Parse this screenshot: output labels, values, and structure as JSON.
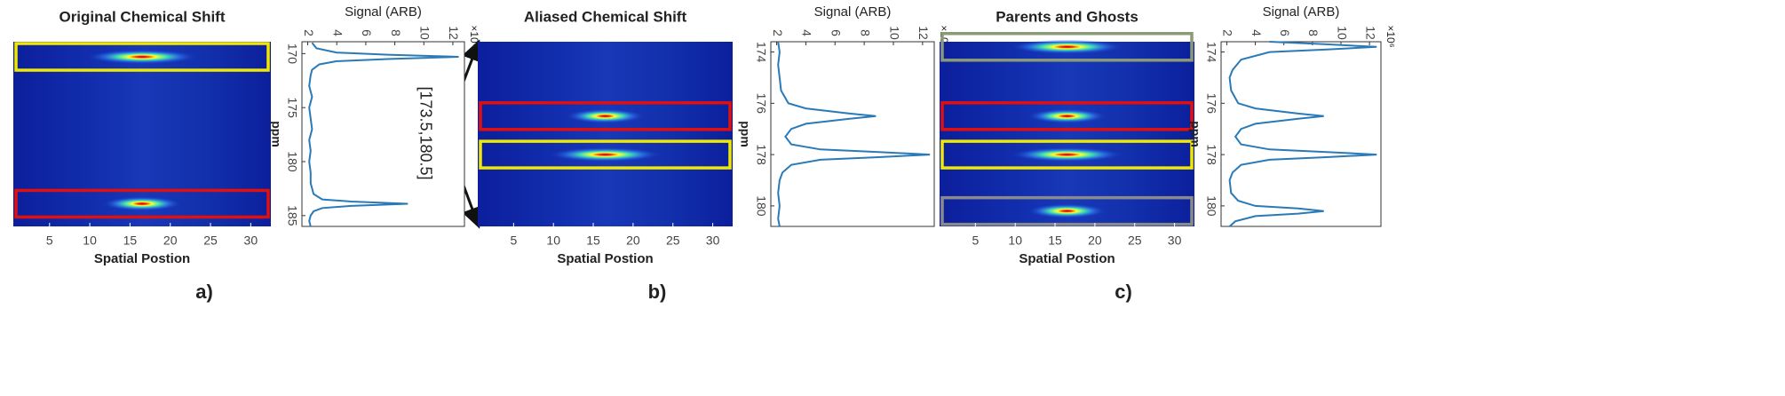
{
  "chart_data": [
    {
      "type": "heatmap",
      "title": "Original Chemical Shift",
      "xlabel": "Spatial Postion",
      "panel_label": "a)",
      "xlim": [
        0.5,
        32.5
      ],
      "xticks": [
        5,
        10,
        15,
        20,
        25,
        30
      ],
      "ylim": [
        168.9,
        186
      ],
      "spots": [
        {
          "ppm": 170.3,
          "x": 16.5,
          "intensity": 12.4
        },
        {
          "ppm": 183.9,
          "x": 16.5,
          "intensity": 8.9
        }
      ],
      "boxes": [
        {
          "center": 170.3,
          "color": "#f0e800"
        },
        {
          "center": 183.9,
          "color": "#e01010"
        }
      ]
    },
    {
      "type": "line",
      "ylabel": "Signal (ARB)",
      "xlabel": "ppm",
      "y_exponent_label": "×10⁶",
      "color": "#2a7ab8",
      "xlim": [
        168.9,
        186
      ],
      "xticks": [
        170,
        175,
        180,
        185
      ],
      "ylim": [
        1.6,
        12.8
      ],
      "yticks": [
        2,
        4,
        6,
        8,
        10,
        12
      ],
      "x": [
        169,
        169.5,
        169.9,
        170.1,
        170.3,
        170.5,
        170.7,
        171,
        171.5,
        172,
        173,
        174,
        175,
        176,
        177,
        178,
        179,
        180,
        181,
        182,
        183,
        183.5,
        183.7,
        183.9,
        184.1,
        184.3,
        184.6,
        185,
        185.5,
        186
      ],
      "values": [
        2.3,
        2.6,
        4,
        7.5,
        12.4,
        7.5,
        4,
        2.8,
        2.3,
        2.2,
        2.1,
        2.3,
        2.1,
        2.2,
        2.3,
        2.1,
        2.2,
        2.1,
        2.2,
        2.2,
        2.4,
        3,
        5,
        8.9,
        5,
        3,
        2.4,
        2.2,
        2.1,
        2.2
      ]
    },
    {
      "type": "heatmap",
      "title": "Aliased Chemical Shift",
      "xlabel": "Spatial Postion",
      "panel_label": "b)",
      "annotation": "[173.5,180.5]",
      "xlim": [
        0.5,
        32.5
      ],
      "xticks": [
        5,
        10,
        15,
        20,
        25,
        30
      ],
      "ylim": [
        173.6,
        180.8
      ],
      "spots": [
        {
          "ppm": 176.5,
          "x": 16.5,
          "intensity": 8.8
        },
        {
          "ppm": 178,
          "x": 16.5,
          "intensity": 12.5
        }
      ],
      "boxes": [
        {
          "center": 176.5,
          "color": "#e01010"
        },
        {
          "center": 178,
          "color": "#f0e800"
        }
      ]
    },
    {
      "type": "line",
      "ylabel": "Signal (ARB)",
      "xlabel": "ppm",
      "y_exponent_label": "×10⁶",
      "color": "#2a7ab8",
      "xlim": [
        173.6,
        180.8
      ],
      "xticks": [
        174,
        176,
        178,
        180
      ],
      "ylim": [
        1.6,
        12.8
      ],
      "yticks": [
        2,
        4,
        6,
        8,
        10,
        12
      ],
      "x": [
        173.6,
        174,
        174.5,
        175,
        175.5,
        176,
        176.2,
        176.4,
        176.5,
        176.6,
        176.8,
        177,
        177.3,
        177.6,
        177.8,
        177.9,
        178,
        178.1,
        178.2,
        178.4,
        178.7,
        179,
        179.5,
        180,
        180.5,
        180.8
      ],
      "values": [
        2.1,
        2.2,
        2.1,
        2.2,
        2.3,
        2.8,
        4,
        7,
        8.8,
        7,
        4,
        3,
        2.6,
        3,
        5,
        9,
        12.5,
        9,
        5,
        3,
        2.4,
        2.2,
        2.1,
        2.2,
        2.1,
        2.2
      ]
    },
    {
      "type": "heatmap",
      "title": "Parents and Ghosts",
      "xlabel": "Spatial Postion",
      "panel_label": "c)",
      "xlim": [
        0.5,
        32.5
      ],
      "xticks": [
        5,
        10,
        15,
        20,
        25,
        30
      ],
      "ylim": [
        173.6,
        180.8
      ],
      "spots": [
        {
          "ppm": 173.8,
          "x": 16.5,
          "intensity": 12.5
        },
        {
          "ppm": 176.5,
          "x": 16.5,
          "intensity": 8.8
        },
        {
          "ppm": 178,
          "x": 16.5,
          "intensity": 12.5
        },
        {
          "ppm": 180.2,
          "x": 16.5,
          "intensity": 8.8
        }
      ],
      "boxes": [
        {
          "center": 173.8,
          "color": "#8a9a78"
        },
        {
          "center": 176.5,
          "color": "#e01010"
        },
        {
          "center": 178,
          "color": "#f0e800"
        },
        {
          "center": 180.2,
          "color": "#8a8a8a"
        }
      ]
    },
    {
      "type": "line",
      "ylabel": "Signal (ARB)",
      "xlabel": "ppm",
      "y_exponent_label": "×10⁶",
      "color": "#2a7ab8",
      "xlim": [
        173.6,
        180.8
      ],
      "xticks": [
        174,
        176,
        178,
        180
      ],
      "ylim": [
        1.6,
        12.8
      ],
      "yticks": [
        2,
        4,
        6,
        8,
        10,
        12
      ],
      "x": [
        173.6,
        173.7,
        173.8,
        173.9,
        174,
        174.3,
        174.7,
        175,
        175.5,
        176,
        176.2,
        176.4,
        176.5,
        176.6,
        176.8,
        177,
        177.3,
        177.6,
        177.8,
        177.9,
        178,
        178.1,
        178.2,
        178.4,
        178.7,
        179,
        179.5,
        179.8,
        180,
        180.1,
        180.2,
        180.3,
        180.4,
        180.6,
        180.8
      ],
      "values": [
        5,
        9,
        12.5,
        9,
        5,
        3,
        2.4,
        2.2,
        2.3,
        2.8,
        4,
        7,
        8.8,
        7,
        4,
        3,
        2.6,
        3,
        5,
        9,
        12.5,
        9,
        5,
        3,
        2.4,
        2.2,
        2.3,
        2.8,
        4,
        7,
        8.8,
        7,
        4,
        2.6,
        2.2
      ]
    }
  ]
}
